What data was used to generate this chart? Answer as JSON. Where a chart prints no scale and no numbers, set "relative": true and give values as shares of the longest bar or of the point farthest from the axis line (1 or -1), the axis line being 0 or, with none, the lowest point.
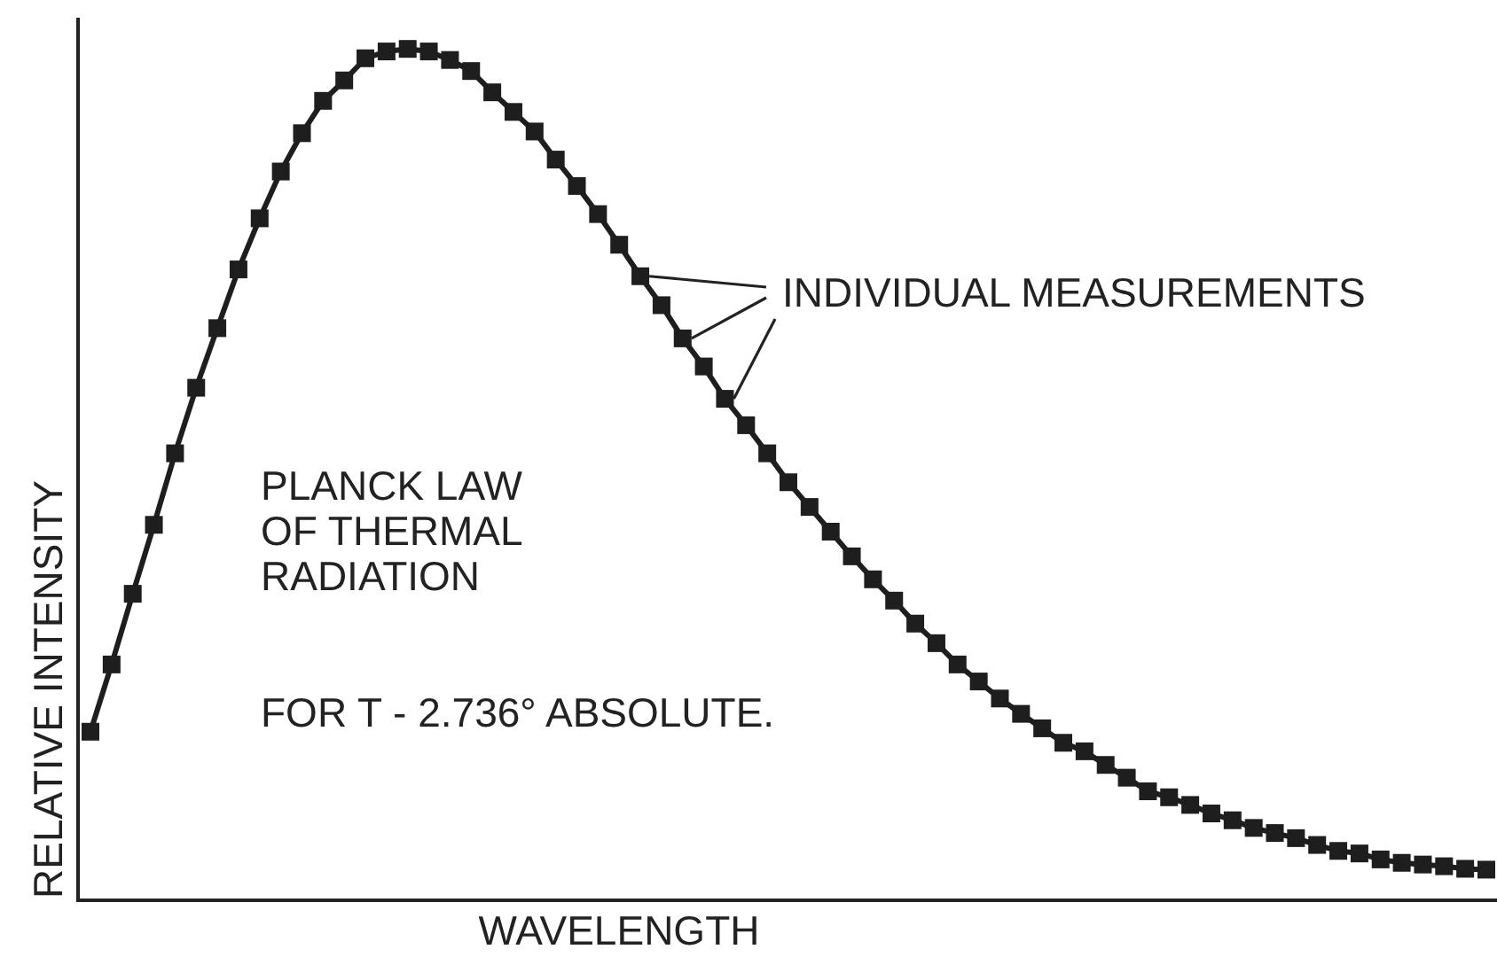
{
  "chart_data": {
    "type": "line",
    "relative": true,
    "xlabel": "WAVELENGTH",
    "ylabel": "RELATIVE INTENSITY",
    "categories": [
      null,
      null,
      null,
      null,
      null,
      null,
      null,
      null,
      null,
      null,
      null,
      null,
      null,
      null,
      null,
      null,
      null,
      null,
      null,
      null,
      null,
      null,
      null,
      null,
      null,
      null,
      null,
      null,
      null,
      null,
      null,
      null,
      null,
      null,
      null,
      null,
      null,
      null,
      null,
      null,
      null,
      null,
      null,
      null,
      null,
      null,
      null,
      null,
      null,
      null,
      null,
      null,
      null,
      null,
      null,
      null,
      null,
      null,
      null,
      null,
      null,
      null,
      null,
      null,
      null,
      null,
      null
    ],
    "values": [
      0.198,
      0.277,
      0.36,
      0.441,
      0.525,
      0.602,
      0.672,
      0.741,
      0.801,
      0.856,
      0.901,
      0.939,
      0.963,
      0.989,
      0.997,
      1,
      0.997,
      0.987,
      0.974,
      0.949,
      0.926,
      0.903,
      0.87,
      0.839,
      0.806,
      0.77,
      0.733,
      0.699,
      0.66,
      0.627,
      0.589,
      0.558,
      0.525,
      0.491,
      0.462,
      0.433,
      0.404,
      0.377,
      0.352,
      0.325,
      0.302,
      0.277,
      0.257,
      0.237,
      0.219,
      0.202,
      0.185,
      0.175,
      0.159,
      0.144,
      0.128,
      0.121,
      0.112,
      0.102,
      0.094,
      0.085,
      0.079,
      0.073,
      0.065,
      0.058,
      0.055,
      0.048,
      0.044,
      0.042,
      0.04,
      0.037,
      0.036
    ],
    "color": "#1e1e1e",
    "marker": "square",
    "line_style": "solid",
    "annotations": [
      "INDIVIDUAL MEASUREMENTS",
      "PLANCK LAW OF THERMAL RADIATION",
      "FOR T - 2.736° ABSOLUTE."
    ]
  }
}
